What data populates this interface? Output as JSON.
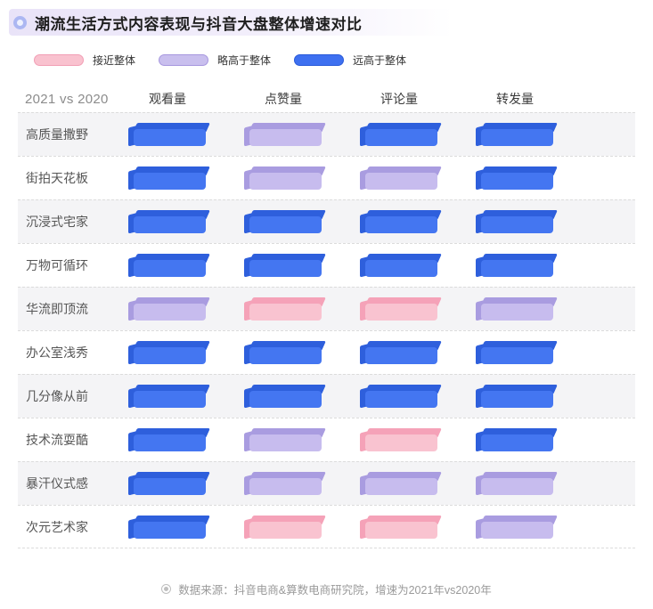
{
  "title": {
    "icon": "bullseye-icon",
    "text": "潮流生活方式内容表现与抖音大盘整体增速对比"
  },
  "legend": {
    "items": [
      {
        "key": "near",
        "label": "接近整体",
        "swatch_fill": "#F9C2CF",
        "swatch_border": "#F29FB5",
        "pill_face": "#F9C3D0",
        "pill_dark": "#F5A2B8"
      },
      {
        "key": "slightly",
        "label": "略高于整体",
        "swatch_fill": "#C9BFEE",
        "swatch_border": "#A797DF",
        "pill_face": "#C7BCEE",
        "pill_dark": "#A99CE0"
      },
      {
        "key": "far",
        "label": "远高于整体",
        "swatch_fill": "#3E70F0",
        "swatch_border": "#2A5BD9",
        "pill_face": "#4476F1",
        "pill_dark": "#2E5FDC"
      }
    ]
  },
  "table": {
    "corner_label": "2021 vs 2020",
    "columns": [
      "观看量",
      "点赞量",
      "评论量",
      "转发量"
    ],
    "rows": [
      {
        "label": "高质量撒野",
        "values": [
          "far",
          "slightly",
          "far",
          "far"
        ]
      },
      {
        "label": "街拍天花板",
        "values": [
          "far",
          "slightly",
          "slightly",
          "far"
        ]
      },
      {
        "label": "沉浸式宅家",
        "values": [
          "far",
          "far",
          "far",
          "far"
        ]
      },
      {
        "label": "万物可循环",
        "values": [
          "far",
          "far",
          "far",
          "far"
        ]
      },
      {
        "label": "华流即顶流",
        "values": [
          "slightly",
          "near",
          "near",
          "slightly"
        ]
      },
      {
        "label": "办公室浅秀",
        "values": [
          "far",
          "far",
          "far",
          "far"
        ]
      },
      {
        "label": "几分像从前",
        "values": [
          "far",
          "far",
          "far",
          "far"
        ]
      },
      {
        "label": "技术流耍酷",
        "values": [
          "far",
          "slightly",
          "near",
          "far"
        ]
      },
      {
        "label": "暴汗仪式感",
        "values": [
          "far",
          "slightly",
          "slightly",
          "slightly"
        ]
      },
      {
        "label": "次元艺术家",
        "values": [
          "far",
          "near",
          "near",
          "slightly"
        ]
      }
    ]
  },
  "footer": {
    "icon": "bullseye-icon",
    "text": "数据来源：抖音电商&算数电商研究院，增速为2021年vs2020年"
  },
  "colors": {
    "row_shade": "#F4F4F6",
    "dashed_line": "#DCDCDC",
    "title_gradient_start": "#E9E3F8",
    "title_icon_ring": "#ACB7F2",
    "footer_gray": "#9A9A9A"
  },
  "chart_data": {
    "type": "heatmap",
    "title": "潮流生活方式内容表现与抖音大盘整体增速对比",
    "comparison_period": "2021 vs 2020",
    "columns": [
      "观看量",
      "点赞量",
      "评论量",
      "转发量"
    ],
    "categories": [
      "高质量撒野",
      "街拍天花板",
      "沉浸式宅家",
      "万物可循环",
      "华流即顶流",
      "办公室浅秀",
      "几分像从前",
      "技术流耍酷",
      "暴汗仪式感",
      "次元艺术家"
    ],
    "levels": [
      "接近整体",
      "略高于整体",
      "远高于整体"
    ],
    "legend_position": "top-left",
    "values": [
      [
        "远高于整体",
        "略高于整体",
        "远高于整体",
        "远高于整体"
      ],
      [
        "远高于整体",
        "略高于整体",
        "略高于整体",
        "远高于整体"
      ],
      [
        "远高于整体",
        "远高于整体",
        "远高于整体",
        "远高于整体"
      ],
      [
        "远高于整体",
        "远高于整体",
        "远高于整体",
        "远高于整体"
      ],
      [
        "略高于整体",
        "接近整体",
        "接近整体",
        "略高于整体"
      ],
      [
        "远高于整体",
        "远高于整体",
        "远高于整体",
        "远高于整体"
      ],
      [
        "远高于整体",
        "远高于整体",
        "远高于整体",
        "远高于整体"
      ],
      [
        "远高于整体",
        "略高于整体",
        "接近整体",
        "远高于整体"
      ],
      [
        "远高于整体",
        "略高于整体",
        "略高于整体",
        "略高于整体"
      ],
      [
        "远高于整体",
        "接近整体",
        "接近整体",
        "略高于整体"
      ]
    ],
    "footnote": "数据来源：抖音电商&算数电商研究院，增速为2021年vs2020年"
  }
}
